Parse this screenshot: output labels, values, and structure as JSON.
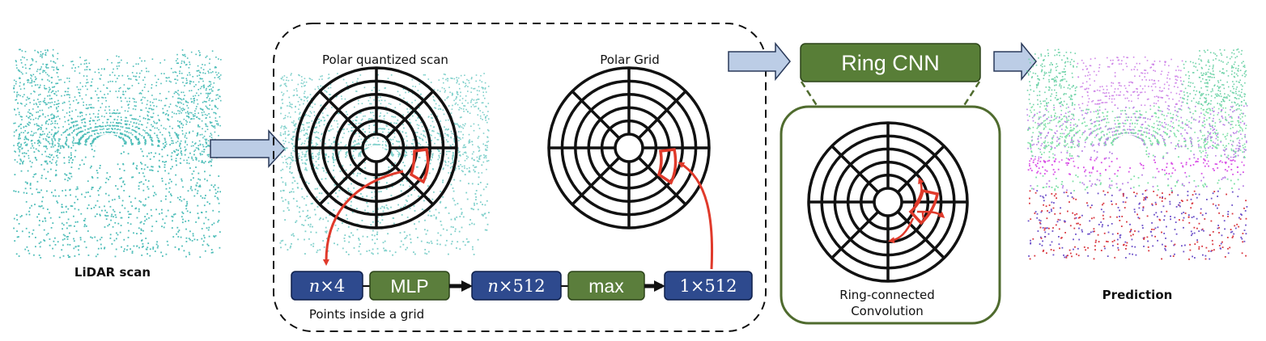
{
  "labels": {
    "lidar_scan": "LiDAR scan",
    "polar_quantized_scan": "Polar quantized scan",
    "polar_grid": "Polar Grid",
    "points_inside_grid": "Points inside a grid",
    "ring_cnn": "Ring CNN",
    "ring_connected_line1": "Ring-connected",
    "ring_connected_line2": "Convolution",
    "prediction": "Prediction"
  },
  "pipeline": [
    {
      "text": "n×4",
      "italic_prefix": "n",
      "rest": "×4",
      "kind": "tensor"
    },
    {
      "text": "MLP",
      "kind": "op"
    },
    {
      "text": "n×512",
      "italic_prefix": "n",
      "rest": "×512",
      "kind": "tensor"
    },
    {
      "text": "max",
      "kind": "op"
    },
    {
      "text": "1×512",
      "kind": "tensor"
    }
  ],
  "colors": {
    "tensor_box": "#2e4a8e",
    "op_box": "#5b7e3c",
    "ring_cnn_box": "#587e37",
    "panel_border": "#4f6b2e",
    "block_arrow_fill": "#bccde6",
    "red_arrow": "#e03a2b",
    "lidar_points": "#4dbdb8"
  },
  "icons": [
    "block-arrow-icon",
    "polar-grid-icon",
    "red-curved-arrow-icon"
  ]
}
